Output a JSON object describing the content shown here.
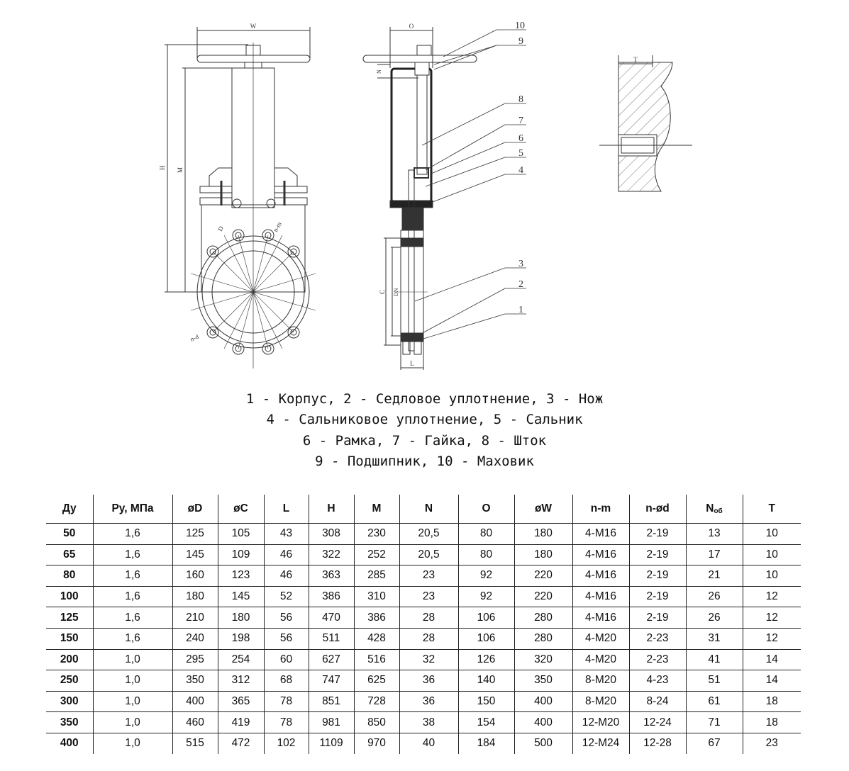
{
  "drawing": {
    "front_labels": {
      "W": "W",
      "H": "H",
      "M": "M",
      "D": "D",
      "nm": "n-m",
      "nd": "n-d"
    },
    "side_labels": {
      "O": "O",
      "N": "N",
      "C": "C",
      "DN": "DN",
      "L": "L"
    },
    "detail_labels": {
      "T": "T"
    },
    "callouts": [
      "10",
      "9",
      "8",
      "7",
      "6",
      "5",
      "4",
      "3",
      "2",
      "1"
    ]
  },
  "captions": [
    "1 - Корпус, 2 - Седловое уплотнение, 3 - Нож",
    "4 - Сальниковое уплотнение, 5 - Сальник",
    "6 - Рамка, 7 - Гайка, 8 - Шток",
    "9 - Подшипник, 10 - Маховик"
  ],
  "table": {
    "headers": [
      "Ду",
      "Ру, МПа",
      "øD",
      "øC",
      "L",
      "H",
      "M",
      "N",
      "O",
      "øW",
      "n-m",
      "n-ød",
      "N",
      "T"
    ],
    "header_sub": "об",
    "rows": [
      [
        "50",
        "1,6",
        "125",
        "105",
        "43",
        "308",
        "230",
        "20,5",
        "80",
        "180",
        "4-M16",
        "2-19",
        "13",
        "10"
      ],
      [
        "65",
        "1,6",
        "145",
        "109",
        "46",
        "322",
        "252",
        "20,5",
        "80",
        "180",
        "4-M16",
        "2-19",
        "17",
        "10"
      ],
      [
        "80",
        "1,6",
        "160",
        "123",
        "46",
        "363",
        "285",
        "23",
        "92",
        "220",
        "4-M16",
        "2-19",
        "21",
        "10"
      ],
      [
        "100",
        "1,6",
        "180",
        "145",
        "52",
        "386",
        "310",
        "23",
        "92",
        "220",
        "4-M16",
        "2-19",
        "26",
        "12"
      ],
      [
        "125",
        "1,6",
        "210",
        "180",
        "56",
        "470",
        "386",
        "28",
        "106",
        "280",
        "4-M16",
        "2-19",
        "26",
        "12"
      ],
      [
        "150",
        "1,6",
        "240",
        "198",
        "56",
        "511",
        "428",
        "28",
        "106",
        "280",
        "4-M20",
        "2-23",
        "31",
        "12"
      ],
      [
        "200",
        "1,0",
        "295",
        "254",
        "60",
        "627",
        "516",
        "32",
        "126",
        "320",
        "4-M20",
        "2-23",
        "41",
        "14"
      ],
      [
        "250",
        "1,0",
        "350",
        "312",
        "68",
        "747",
        "625",
        "36",
        "140",
        "350",
        "8-M20",
        "4-23",
        "51",
        "14"
      ],
      [
        "300",
        "1,0",
        "400",
        "365",
        "78",
        "851",
        "728",
        "36",
        "150",
        "400",
        "8-M20",
        "8-24",
        "61",
        "18"
      ],
      [
        "350",
        "1,0",
        "460",
        "419",
        "78",
        "981",
        "850",
        "38",
        "154",
        "400",
        "12-M20",
        "12-24",
        "71",
        "18"
      ],
      [
        "400",
        "1,0",
        "515",
        "472",
        "102",
        "1109",
        "970",
        "40",
        "184",
        "500",
        "12-M24",
        "12-28",
        "67",
        "23"
      ]
    ]
  }
}
